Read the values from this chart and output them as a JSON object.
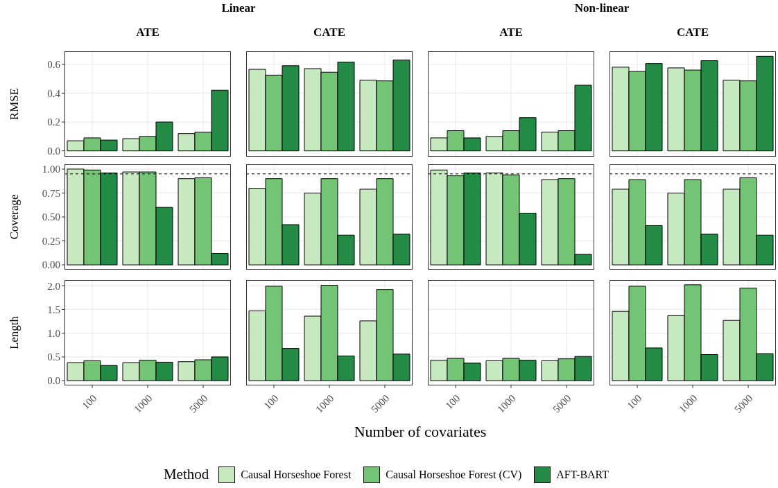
{
  "chart_data": [
    {
      "type": "bar",
      "title": "Linear",
      "subtitle": "ATE",
      "ylabel": "RMSE",
      "legend": "bottom",
      "legend_title": "Method",
      "categories": [
        "100",
        "1000",
        "5000"
      ],
      "tick_labels": "y",
      "grid": true,
      "ylim": [
        -0.04,
        0.69
      ],
      "yticks": [
        {
          "value": 0,
          "label": "0.0"
        },
        {
          "value": 0.2,
          "label": "0.2"
        },
        {
          "value": 0.4,
          "label": "0.4"
        },
        {
          "value": 0.6,
          "label": "0.6"
        }
      ],
      "series": [
        {
          "name": "Causal Horseshoe Forest",
          "color": "#c7e9c0",
          "values": [
            0.07,
            0.085,
            0.12
          ]
        },
        {
          "name": "Causal Horseshoe Forest (CV)",
          "color": "#74c476",
          "values": [
            0.09,
            0.1,
            0.13
          ]
        },
        {
          "name": "AFT-BART",
          "color": "#238b45",
          "values": [
            0.075,
            0.2,
            0.42
          ]
        }
      ]
    },
    {
      "type": "bar",
      "subtitle": "CATE",
      "categories": [
        "100",
        "1000",
        "5000"
      ],
      "tick_labels": false,
      "grid": true,
      "ylim": [
        -0.04,
        0.69
      ],
      "yticks": [
        0,
        0.2,
        0.4,
        0.6
      ],
      "series": [
        {
          "color": "#c7e9c0",
          "values": [
            0.565,
            0.57,
            0.49
          ]
        },
        {
          "color": "#74c476",
          "values": [
            0.525,
            0.545,
            0.485
          ]
        },
        {
          "color": "#238b45",
          "values": [
            0.59,
            0.615,
            0.63
          ]
        }
      ]
    },
    {
      "type": "bar",
      "title": "Non-linear",
      "subtitle": "ATE",
      "categories": [
        "100",
        "1000",
        "5000"
      ],
      "tick_labels": false,
      "grid": true,
      "ylim": [
        -0.04,
        0.69
      ],
      "yticks": [
        0,
        0.2,
        0.4,
        0.6
      ],
      "series": [
        {
          "color": "#c7e9c0",
          "values": [
            0.09,
            0.1,
            0.13
          ]
        },
        {
          "color": "#74c476",
          "values": [
            0.14,
            0.14,
            0.14
          ]
        },
        {
          "color": "#238b45",
          "values": [
            0.09,
            0.23,
            0.455
          ]
        }
      ]
    },
    {
      "type": "bar",
      "subtitle": "CATE",
      "categories": [
        "100",
        "1000",
        "5000"
      ],
      "tick_labels": false,
      "grid": true,
      "ylim": [
        -0.04,
        0.69
      ],
      "yticks": [
        0,
        0.2,
        0.4,
        0.6
      ],
      "series": [
        {
          "color": "#c7e9c0",
          "values": [
            0.58,
            0.575,
            0.49
          ]
        },
        {
          "color": "#74c476",
          "values": [
            0.55,
            0.56,
            0.485
          ]
        },
        {
          "color": "#238b45",
          "values": [
            0.605,
            0.625,
            0.655
          ]
        }
      ]
    },
    {
      "type": "bar",
      "ylabel": "Coverage",
      "categories": [
        "100",
        "1000",
        "5000"
      ],
      "tick_labels": "y",
      "grid": true,
      "ylim": [
        -0.05,
        1.05
      ],
      "yticks": [
        {
          "value": 0,
          "label": "0.00"
        },
        {
          "value": 0.25,
          "label": "0.25"
        },
        {
          "value": 0.5,
          "label": "0.50"
        },
        {
          "value": 0.75,
          "label": "0.75"
        },
        {
          "value": 1,
          "label": "1.00"
        }
      ],
      "ref_lines": [
        {
          "axis": "y",
          "value": 0.95,
          "line_style": "dashed"
        }
      ],
      "series": [
        {
          "color": "#c7e9c0",
          "values": [
            1.0,
            0.97,
            0.9
          ]
        },
        {
          "color": "#74c476",
          "values": [
            0.99,
            0.97,
            0.91
          ]
        },
        {
          "color": "#238b45",
          "values": [
            0.96,
            0.6,
            0.12
          ]
        }
      ]
    },
    {
      "type": "bar",
      "categories": [
        "100",
        "1000",
        "5000"
      ],
      "tick_labels": false,
      "grid": true,
      "ylim": [
        -0.05,
        1.05
      ],
      "yticks": [
        0,
        0.25,
        0.5,
        0.75,
        1
      ],
      "ref_lines": [
        {
          "axis": "y",
          "value": 0.95,
          "line_style": "dashed"
        }
      ],
      "series": [
        {
          "color": "#c7e9c0",
          "values": [
            0.8,
            0.75,
            0.79
          ]
        },
        {
          "color": "#74c476",
          "values": [
            0.9,
            0.9,
            0.9
          ]
        },
        {
          "color": "#238b45",
          "values": [
            0.42,
            0.31,
            0.32
          ]
        }
      ]
    },
    {
      "type": "bar",
      "categories": [
        "100",
        "1000",
        "5000"
      ],
      "tick_labels": false,
      "grid": true,
      "ylim": [
        -0.05,
        1.05
      ],
      "yticks": [
        0,
        0.25,
        0.5,
        0.75,
        1
      ],
      "ref_lines": [
        {
          "axis": "y",
          "value": 0.95,
          "line_style": "dashed"
        }
      ],
      "series": [
        {
          "color": "#c7e9c0",
          "values": [
            0.99,
            0.96,
            0.89
          ]
        },
        {
          "color": "#74c476",
          "values": [
            0.93,
            0.94,
            0.9
          ]
        },
        {
          "color": "#238b45",
          "values": [
            0.96,
            0.54,
            0.11
          ]
        }
      ]
    },
    {
      "type": "bar",
      "categories": [
        "100",
        "1000",
        "5000"
      ],
      "tick_labels": false,
      "grid": true,
      "ylim": [
        -0.05,
        1.05
      ],
      "yticks": [
        0,
        0.25,
        0.5,
        0.75,
        1
      ],
      "ref_lines": [
        {
          "axis": "y",
          "value": 0.95,
          "line_style": "dashed"
        }
      ],
      "series": [
        {
          "color": "#c7e9c0",
          "values": [
            0.79,
            0.75,
            0.79
          ]
        },
        {
          "color": "#74c476",
          "values": [
            0.89,
            0.89,
            0.91
          ]
        },
        {
          "color": "#238b45",
          "values": [
            0.41,
            0.32,
            0.31
          ]
        }
      ]
    },
    {
      "type": "bar",
      "ylabel": "Length",
      "categories": [
        "100",
        "1000",
        "5000"
      ],
      "grid": true,
      "ylim": [
        -0.1,
        2.12
      ],
      "yticks": [
        {
          "value": 0,
          "label": "0.0"
        },
        {
          "value": 0.5,
          "label": "0.5"
        },
        {
          "value": 1,
          "label": "1.0"
        },
        {
          "value": 1.5,
          "label": "1.5"
        },
        {
          "value": 2,
          "label": "2.0"
        }
      ],
      "series": [
        {
          "color": "#c7e9c0",
          "values": [
            0.38,
            0.38,
            0.4
          ]
        },
        {
          "color": "#74c476",
          "values": [
            0.42,
            0.43,
            0.44
          ]
        },
        {
          "color": "#238b45",
          "values": [
            0.32,
            0.39,
            0.5
          ]
        }
      ]
    },
    {
      "type": "bar",
      "xlabel": "Number of covariates",
      "categories": [
        "100",
        "1000",
        "5000"
      ],
      "tick_labels": "x",
      "grid": true,
      "ylim": [
        -0.1,
        2.12
      ],
      "yticks": [
        0,
        0.5,
        1,
        1.5,
        2
      ],
      "series": [
        {
          "color": "#c7e9c0",
          "values": [
            1.47,
            1.36,
            1.26
          ]
        },
        {
          "color": "#74c476",
          "values": [
            1.99,
            2.01,
            1.92
          ]
        },
        {
          "color": "#238b45",
          "values": [
            0.68,
            0.52,
            0.56
          ]
        }
      ]
    },
    {
      "type": "bar",
      "categories": [
        "100",
        "1000",
        "5000"
      ],
      "tick_labels": "x",
      "grid": true,
      "ylim": [
        -0.1,
        2.12
      ],
      "yticks": [
        0,
        0.5,
        1,
        1.5,
        2
      ],
      "series": [
        {
          "color": "#c7e9c0",
          "values": [
            0.43,
            0.42,
            0.42
          ]
        },
        {
          "color": "#74c476",
          "values": [
            0.47,
            0.47,
            0.46
          ]
        },
        {
          "color": "#238b45",
          "values": [
            0.37,
            0.43,
            0.51
          ]
        }
      ]
    },
    {
      "type": "bar",
      "categories": [
        "100",
        "1000",
        "5000"
      ],
      "tick_labels": "x",
      "grid": true,
      "ylim": [
        -0.1,
        2.12
      ],
      "yticks": [
        0,
        0.5,
        1,
        1.5,
        2
      ],
      "series": [
        {
          "color": "#c7e9c0",
          "values": [
            1.46,
            1.37,
            1.27
          ]
        },
        {
          "color": "#74c476",
          "values": [
            1.99,
            2.02,
            1.95
          ]
        },
        {
          "color": "#238b45",
          "values": [
            0.69,
            0.55,
            0.57
          ]
        }
      ]
    }
  ]
}
